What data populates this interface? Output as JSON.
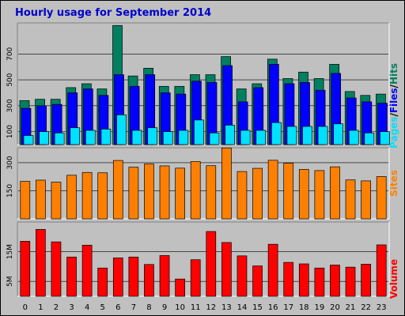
{
  "title": "Hourly usage for September 2014",
  "colors": {
    "title": "#0000cc",
    "hits": "#008060",
    "files": "#0000ff",
    "pages": "#00e0ff",
    "sites": "#ff8000",
    "volume": "#ff0000",
    "panel": "#c0c0c0"
  },
  "chart_data": [
    {
      "type": "bar",
      "title": "Hourly usage for September 2014",
      "categories": [
        "0",
        "1",
        "2",
        "3",
        "4",
        "5",
        "6",
        "7",
        "8",
        "9",
        "10",
        "11",
        "12",
        "13",
        "14",
        "15",
        "16",
        "17",
        "18",
        "19",
        "20",
        "21",
        "22",
        "23"
      ],
      "yticks": [
        100,
        300,
        500,
        700
      ],
      "ylim": [
        0,
        940
      ],
      "grid": true,
      "legend": "right",
      "legend_labels": [
        "Pages",
        "/",
        "Files",
        "/",
        "Hits"
      ],
      "series": [
        {
          "name": "Hits",
          "values": [
            340,
            350,
            350,
            440,
            470,
            430,
            920,
            530,
            590,
            450,
            450,
            540,
            540,
            680,
            430,
            470,
            660,
            510,
            560,
            510,
            620,
            410,
            380,
            390
          ]
        },
        {
          "name": "Files",
          "values": [
            280,
            300,
            310,
            400,
            430,
            380,
            540,
            450,
            540,
            400,
            390,
            490,
            480,
            610,
            330,
            440,
            620,
            470,
            480,
            420,
            550,
            360,
            330,
            320
          ]
        },
        {
          "name": "Pages",
          "values": [
            70,
            100,
            90,
            130,
            110,
            120,
            230,
            110,
            130,
            100,
            110,
            190,
            90,
            150,
            110,
            110,
            170,
            140,
            140,
            140,
            160,
            110,
            90,
            100
          ]
        }
      ]
    },
    {
      "type": "bar",
      "categories": [
        "0",
        "1",
        "2",
        "3",
        "4",
        "5",
        "6",
        "7",
        "8",
        "9",
        "10",
        "11",
        "12",
        "13",
        "14",
        "15",
        "16",
        "17",
        "18",
        "19",
        "20",
        "21",
        "22",
        "23"
      ],
      "yticks": [
        150,
        300
      ],
      "ylim": [
        0,
        380
      ],
      "grid": true,
      "legend": "right",
      "series": [
        {
          "name": "Sites",
          "values": [
            200,
            207,
            196,
            233,
            248,
            246,
            312,
            276,
            293,
            283,
            271,
            306,
            284,
            379,
            253,
            270,
            313,
            297,
            264,
            258,
            278,
            208,
            203,
            226
          ]
        }
      ]
    },
    {
      "type": "bar",
      "categories": [
        "0",
        "1",
        "2",
        "3",
        "4",
        "5",
        "6",
        "7",
        "8",
        "9",
        "10",
        "11",
        "12",
        "13",
        "14",
        "15",
        "16",
        "17",
        "18",
        "19",
        "20",
        "21",
        "22",
        "23"
      ],
      "yticks": [
        "5M",
        "15M"
      ],
      "ytick_values": [
        5,
        15
      ],
      "ylim": [
        0,
        25
      ],
      "unit": "M",
      "grid": true,
      "legend": "right",
      "series": [
        {
          "name": "Volume",
          "values": [
            18.5,
            22.5,
            18.3,
            13.2,
            17.2,
            9.5,
            12.9,
            13.2,
            10.7,
            13.7,
            5.8,
            12.3,
            21.8,
            18.1,
            13.6,
            10.2,
            17.5,
            11.4,
            10.9,
            9.5,
            10.5,
            9.8,
            10.8,
            17.3
          ]
        }
      ]
    }
  ]
}
